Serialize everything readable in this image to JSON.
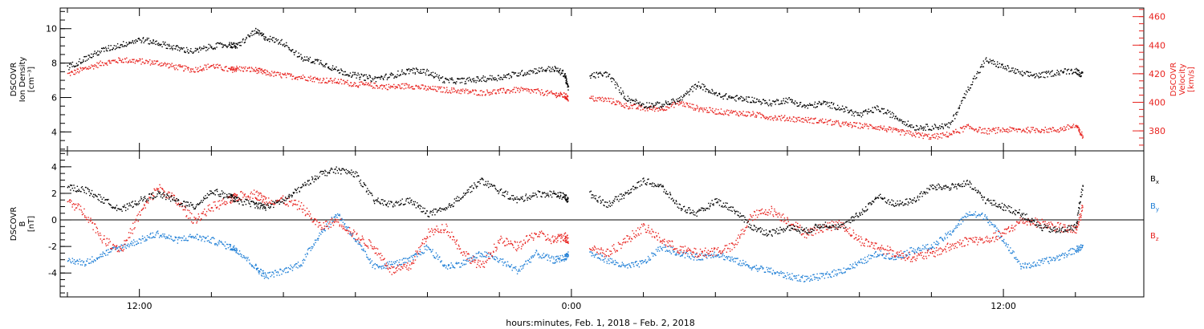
{
  "xlabel": "hours:minutes, Feb.  1, 2018 – Feb.  2, 2018",
  "colors": {
    "black": "#000000",
    "red": "#e8231f",
    "blue": "#1f7fd6"
  },
  "chart_data": [
    {
      "type": "scatter",
      "panel": "plasma",
      "ylabel_left": [
        "DSCOVR",
        "Ion Density",
        "[cm⁻³]"
      ],
      "ylabel_right": [
        "DSCOVR",
        "Velocity",
        "[km/s]"
      ],
      "x_tick_labels": [
        "12:00",
        "0:00",
        "12:00"
      ],
      "x_range_hours": [
        9.8,
        39.9
      ],
      "y_left": {
        "ylim": [
          2.9,
          11.2
        ],
        "ticks": [
          4,
          6,
          8,
          10
        ]
      },
      "y_right": {
        "ylim": [
          366,
          466
        ],
        "ticks": [
          380,
          400,
          420,
          440,
          460
        ]
      },
      "series": [
        {
          "name": "Ion Density",
          "axis": "left",
          "color": "#000000",
          "x": [
            10.0,
            10.5,
            11.0,
            11.5,
            12.0,
            12.5,
            13.0,
            13.5,
            14.0,
            14.5,
            14.7,
            15.2,
            15.5,
            16.0,
            16.5,
            17.0,
            17.5,
            18.0,
            18.5,
            19.0,
            19.5,
            20.0,
            20.5,
            21.0,
            21.5,
            22.0,
            22.5,
            23.0,
            23.5,
            23.8,
            23.9,
            24.5,
            25.0,
            25.5,
            26.0,
            26.5,
            27.0,
            27.5,
            28.0,
            28.5,
            29.0,
            29.5,
            30.0,
            30.5,
            31.0,
            31.5,
            32.0,
            32.5,
            33.0,
            33.5,
            34.0,
            34.5,
            35.0,
            35.5,
            36.0,
            36.5,
            37.0,
            37.5,
            38.0,
            38.2
          ],
          "y": [
            7.8,
            8.3,
            8.8,
            9.1,
            9.4,
            9.2,
            8.9,
            8.7,
            9.0,
            9.1,
            9.0,
            9.9,
            9.5,
            9.2,
            8.3,
            8.1,
            7.6,
            7.3,
            7.1,
            7.3,
            7.6,
            7.5,
            7.0,
            7.0,
            7.1,
            7.2,
            7.4,
            7.6,
            7.7,
            7.4,
            6.5,
            7.3,
            7.4,
            6.0,
            5.6,
            5.6,
            5.9,
            6.8,
            6.2,
            6.0,
            5.9,
            5.7,
            5.9,
            5.5,
            5.7,
            5.4,
            5.0,
            5.4,
            4.9,
            4.3,
            4.3,
            4.4,
            6.5,
            8.2,
            7.8,
            7.4,
            7.3,
            7.5,
            7.6,
            7.3
          ]
        },
        {
          "name": "Velocity",
          "axis": "right",
          "color": "#e8231f",
          "x": [
            10.0,
            10.5,
            11.0,
            11.5,
            12.0,
            12.5,
            13.0,
            13.5,
            14.0,
            14.5,
            14.7,
            15.2,
            15.5,
            16.0,
            16.5,
            17.0,
            17.5,
            18.0,
            18.5,
            19.0,
            19.5,
            20.0,
            20.5,
            21.0,
            21.5,
            22.0,
            22.5,
            23.0,
            23.5,
            23.8,
            23.9,
            24.5,
            25.0,
            25.5,
            26.0,
            26.5,
            27.0,
            27.5,
            28.0,
            28.5,
            29.0,
            29.5,
            30.0,
            30.5,
            31.0,
            31.5,
            32.0,
            32.5,
            33.0,
            33.5,
            34.0,
            34.5,
            35.0,
            35.5,
            36.0,
            36.5,
            37.0,
            37.5,
            38.0,
            38.2
          ],
          "y": [
            420,
            424,
            428,
            430,
            429,
            428,
            425,
            423,
            426,
            423,
            424,
            423,
            421,
            419,
            418,
            416,
            415,
            413,
            412,
            411,
            412,
            410,
            409,
            408,
            407,
            408,
            409,
            408,
            406,
            405,
            403,
            403,
            402,
            398,
            396,
            396,
            400,
            396,
            394,
            393,
            392,
            390,
            389,
            388,
            387,
            385,
            384,
            383,
            380,
            378,
            376,
            378,
            383,
            380,
            381,
            381,
            381,
            381,
            384,
            376
          ]
        }
      ]
    },
    {
      "type": "scatter",
      "panel": "magnetic-field",
      "ylabel_left": [
        "DSCOVR",
        "B",
        "[nT]"
      ],
      "x_tick_labels": [
        "12:00",
        "0:00",
        "12:00"
      ],
      "x_range_hours": [
        9.8,
        39.9
      ],
      "y": {
        "ylim": [
          -5.8,
          5.2
        ],
        "ticks": [
          -4,
          -2,
          0,
          2,
          4
        ]
      },
      "legend": [
        {
          "label": "B",
          "sub": "x",
          "color": "#000000"
        },
        {
          "label": "B",
          "sub": "y",
          "color": "#1f7fd6"
        },
        {
          "label": "B",
          "sub": "z",
          "color": "#e8231f"
        }
      ],
      "series": [
        {
          "name": "Bx",
          "color": "#000000",
          "x": [
            10.0,
            10.5,
            11.0,
            11.5,
            12.0,
            12.5,
            13.0,
            13.5,
            14.0,
            14.5,
            14.7,
            15.2,
            15.5,
            16.0,
            16.5,
            17.0,
            17.5,
            18.0,
            18.5,
            19.0,
            19.5,
            20.0,
            20.5,
            21.0,
            21.5,
            22.0,
            22.5,
            23.0,
            23.5,
            23.8,
            23.9,
            24.5,
            25.0,
            25.5,
            26.0,
            26.5,
            27.0,
            27.5,
            28.0,
            28.5,
            29.0,
            29.5,
            30.0,
            30.5,
            31.0,
            31.5,
            32.0,
            32.5,
            33.0,
            33.5,
            34.0,
            34.5,
            35.0,
            35.5,
            36.0,
            36.5,
            37.0,
            37.5,
            38.0,
            38.2
          ],
          "y": [
            2.5,
            2.3,
            1.5,
            0.8,
            1.5,
            2.0,
            1.5,
            1.0,
            2.2,
            1.8,
            1.5,
            1.2,
            1.0,
            1.5,
            2.5,
            3.5,
            3.8,
            3.5,
            1.5,
            1.2,
            1.5,
            0.5,
            0.8,
            2.0,
            3.0,
            2.2,
            1.5,
            2.0,
            2.0,
            1.8,
            1.5,
            2.0,
            1.2,
            2.0,
            3.0,
            2.5,
            1.0,
            0.5,
            1.5,
            0.8,
            -0.5,
            -1.0,
            -0.5,
            -0.8,
            -0.3,
            -0.5,
            0.5,
            1.8,
            1.2,
            1.5,
            2.5,
            2.5,
            2.8,
            1.5,
            1.0,
            0.5,
            -0.5,
            -0.8,
            -0.5,
            2.8
          ]
        },
        {
          "name": "By",
          "color": "#1f7fd6",
          "x": [
            10.0,
            10.5,
            11.0,
            11.5,
            12.0,
            12.5,
            13.0,
            13.5,
            14.0,
            14.5,
            14.7,
            15.2,
            15.5,
            16.0,
            16.5,
            17.0,
            17.5,
            18.0,
            18.5,
            19.0,
            19.5,
            20.0,
            20.5,
            21.0,
            21.5,
            22.0,
            22.5,
            23.0,
            23.5,
            23.8,
            23.9,
            24.5,
            25.0,
            25.5,
            26.0,
            26.5,
            27.0,
            27.5,
            28.0,
            28.5,
            29.0,
            29.5,
            30.0,
            30.5,
            31.0,
            31.5,
            32.0,
            32.5,
            33.0,
            33.5,
            34.0,
            34.5,
            35.0,
            35.5,
            36.0,
            36.5,
            37.0,
            37.5,
            38.0,
            38.2
          ],
          "y": [
            -3.0,
            -3.2,
            -2.5,
            -2.0,
            -1.5,
            -1.0,
            -1.5,
            -1.2,
            -1.5,
            -2.0,
            -2.2,
            -3.5,
            -4.2,
            -3.8,
            -3.2,
            -1.0,
            0.5,
            -1.5,
            -3.5,
            -3.3,
            -3.0,
            -2.0,
            -3.5,
            -3.2,
            -2.5,
            -3.0,
            -3.8,
            -2.5,
            -3.0,
            -2.8,
            -2.5,
            -2.5,
            -3.0,
            -3.5,
            -3.2,
            -2.0,
            -2.5,
            -2.8,
            -2.5,
            -3.0,
            -3.5,
            -3.8,
            -4.2,
            -4.4,
            -4.2,
            -3.8,
            -3.2,
            -2.5,
            -2.8,
            -2.2,
            -2.0,
            -1.0,
            0.5,
            0.3,
            -1.5,
            -3.5,
            -3.2,
            -2.8,
            -2.2,
            -2.0
          ]
        },
        {
          "name": "Bz",
          "color": "#e8231f",
          "x": [
            10.0,
            10.5,
            11.0,
            11.5,
            12.0,
            12.5,
            13.0,
            13.5,
            14.0,
            14.5,
            14.7,
            15.2,
            15.5,
            16.0,
            16.5,
            17.0,
            17.5,
            18.0,
            18.5,
            19.0,
            19.5,
            20.0,
            20.5,
            21.0,
            21.5,
            22.0,
            22.5,
            23.0,
            23.5,
            23.8,
            23.9,
            24.5,
            25.0,
            25.5,
            26.0,
            26.5,
            27.0,
            27.5,
            28.0,
            28.5,
            29.0,
            29.5,
            30.0,
            30.5,
            31.0,
            31.5,
            32.0,
            32.5,
            33.0,
            33.5,
            34.0,
            34.5,
            35.0,
            35.5,
            36.0,
            36.5,
            37.0,
            37.5,
            38.0,
            38.2
          ],
          "y": [
            1.5,
            0.5,
            -1.5,
            -2.2,
            0.5,
            2.5,
            1.5,
            0.0,
            1.0,
            1.5,
            1.8,
            2.0,
            1.5,
            1.5,
            1.0,
            -0.5,
            0.0,
            -1.2,
            -2.0,
            -3.8,
            -3.5,
            -1.0,
            -0.5,
            -2.5,
            -3.5,
            -1.5,
            -2.0,
            -1.0,
            -1.5,
            -1.2,
            -1.5,
            -2.0,
            -2.5,
            -1.5,
            -0.5,
            -1.5,
            -2.2,
            -2.5,
            -2.3,
            -2.0,
            0.3,
            0.8,
            0.0,
            -1.0,
            -0.5,
            -0.3,
            -1.5,
            -2.0,
            -2.5,
            -2.8,
            -2.5,
            -2.0,
            -1.5,
            -1.5,
            -1.0,
            0.0,
            -0.2,
            -0.5,
            -0.8,
            1.0
          ]
        }
      ]
    }
  ]
}
